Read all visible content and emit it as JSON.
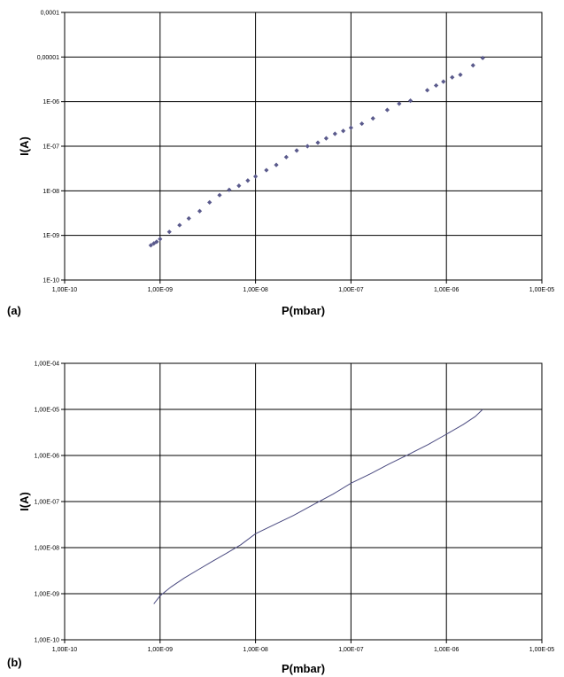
{
  "chart_data": [
    {
      "panel_label": "(a)",
      "type": "scatter",
      "xlabel": "P(mbar)",
      "ylabel": "I(A)",
      "x_scale": "log",
      "y_scale": "log",
      "xlim": [
        1e-10,
        1e-05
      ],
      "ylim": [
        1e-10,
        0.0001
      ],
      "grid": true,
      "x_tick_values": [
        1e-10,
        1e-09,
        1e-08,
        1e-07,
        1e-06,
        1e-05
      ],
      "x_tick_labels": [
        "1,00E-10",
        "1,00E-09",
        "1,00E-08",
        "1,00E-07",
        "1,00E-06",
        "1,00E-05"
      ],
      "y_tick_values": [
        1e-10,
        1e-09,
        1e-08,
        1e-07,
        1e-06,
        1e-05,
        0.0001
      ],
      "y_tick_labels": [
        "1E-10",
        "1E-09",
        "1E-08",
        "1E-07",
        "1E-06",
        "0,00001",
        "0,0001"
      ],
      "marker_color": "#5a5a8c",
      "series": [
        {
          "x": [
            8e-10,
            8.6e-10,
            9.2e-10,
            1e-09,
            1.25e-09,
            1.6e-09,
            2e-09,
            2.6e-09,
            3.3e-09,
            4.2e-09,
            5.3e-09,
            6.7e-09,
            8.3e-09,
            1e-08,
            1.3e-08,
            1.65e-08,
            2.1e-08,
            2.7e-08,
            3.5e-08,
            4.5e-08,
            5.5e-08,
            6.8e-08,
            8.3e-08,
            1e-07,
            1.3e-07,
            1.7e-07,
            2.4e-07,
            3.2e-07,
            4.2e-07,
            6.3e-07,
            7.8e-07,
            9.3e-07,
            1.15e-06,
            1.4e-06,
            1.9e-06,
            2.4e-06
          ],
          "y": [
            6e-10,
            6.6e-10,
            7.2e-10,
            8.3e-10,
            1.2e-09,
            1.7e-09,
            2.4e-09,
            3.5e-09,
            5.5e-09,
            8e-09,
            1.05e-08,
            1.3e-08,
            1.7e-08,
            2.1e-08,
            2.9e-08,
            3.8e-08,
            5.7e-08,
            8e-08,
            1e-07,
            1.2e-07,
            1.5e-07,
            1.9e-07,
            2.2e-07,
            2.6e-07,
            3.2e-07,
            4.2e-07,
            6.5e-07,
            9e-07,
            1.05e-06,
            1.8e-06,
            2.3e-06,
            2.8e-06,
            3.5e-06,
            4e-06,
            6.5e-06,
            9.5e-06
          ]
        }
      ]
    },
    {
      "panel_label": "(b)",
      "type": "line",
      "xlabel": "P(mbar)",
      "ylabel": "I(A)",
      "x_scale": "log",
      "y_scale": "log",
      "xlim": [
        1e-10,
        1e-05
      ],
      "ylim": [
        1e-10,
        0.0001
      ],
      "grid": true,
      "x_tick_values": [
        1e-10,
        1e-09,
        1e-08,
        1e-07,
        1e-06,
        1e-05
      ],
      "x_tick_labels": [
        "1,00E-10",
        "1,00E-09",
        "1,00E-08",
        "1,00E-07",
        "1,00E-06",
        "1,00E-05"
      ],
      "y_tick_values": [
        1e-10,
        1e-09,
        1e-08,
        1e-07,
        1e-06,
        1e-05,
        0.0001
      ],
      "y_tick_labels": [
        "1,00E-10",
        "1,00E-09",
        "1,00E-08",
        "1,00E-07",
        "1,00E-06",
        "1,00E-05",
        "1,00E-04"
      ],
      "line_color": "#4a4a80",
      "series": [
        {
          "x": [
            8.6e-10,
            1e-09,
            1.3e-09,
            1.8e-09,
            2.5e-09,
            3.5e-09,
            5e-09,
            7e-09,
            1e-08,
            1.6e-08,
            2.5e-08,
            4e-08,
            6.5e-08,
            1e-07,
            1.6e-07,
            2.5e-07,
            4e-07,
            6.5e-07,
            1e-06,
            1.5e-06,
            2e-06,
            2.4e-06
          ],
          "y": [
            6e-10,
            9e-10,
            1.4e-09,
            2.2e-09,
            3.3e-09,
            5e-09,
            7.6e-09,
            1.15e-08,
            2e-08,
            3.2e-08,
            5e-08,
            8.5e-08,
            1.45e-07,
            2.5e-07,
            4e-07,
            6.5e-07,
            1.05e-06,
            1.75e-06,
            2.9e-06,
            4.7e-06,
            7e-06,
            1e-05
          ]
        }
      ]
    }
  ]
}
